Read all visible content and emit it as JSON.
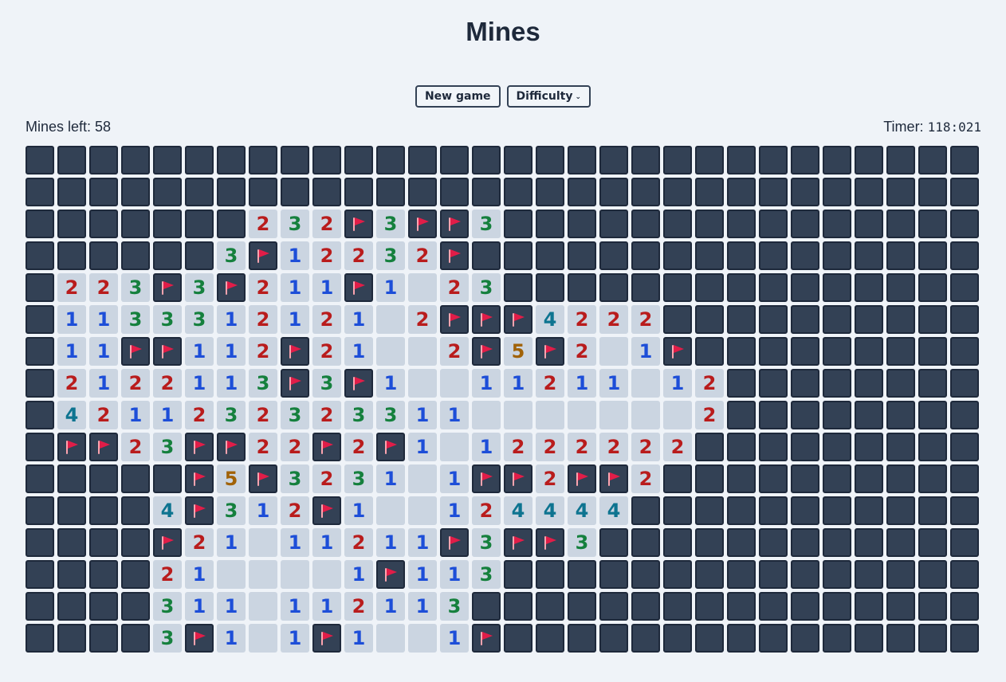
{
  "title": "Mines",
  "controls": {
    "new_game_label": "New game",
    "difficulty_label": "Difficulty"
  },
  "status": {
    "mines_left_label": "Mines left: 58",
    "timer_label": "Timer: ",
    "timer_value": "118:021"
  },
  "legend": {
    "hidden": "#",
    "flag": "F",
    "empty": "."
  },
  "colors": {
    "hidden_cell": "#334155",
    "open_cell": "#cbd5e1",
    "flag": "#e11d48",
    "n1": "#1d4ed8",
    "n2": "#b91c1c",
    "n3": "#15803d",
    "n4": "#0e7490",
    "n5": "#a16207"
  },
  "board": {
    "columns": 30,
    "rows": [
      "##############################",
      "##############################",
      "#######232F3FF3###############",
      "######3F12232F################",
      "#223F3F211F1.23###############",
      "#1133312121.2FFF4222##########",
      "#11FF112F21..2F5F2.1F#########",
      "#2122113F3F1..11211.12########",
      "#4211232323311.......2########",
      "#FF23FF22F2F1.1222222#########",
      "#####F5F3231.1FF2FF2##########",
      "####4F312F1..124444###########",
      "####F21.11211F3FF3############",
      "####21....1F113###############",
      "####311.112113################",
      "####3F1.1F1..1F###############"
    ]
  }
}
